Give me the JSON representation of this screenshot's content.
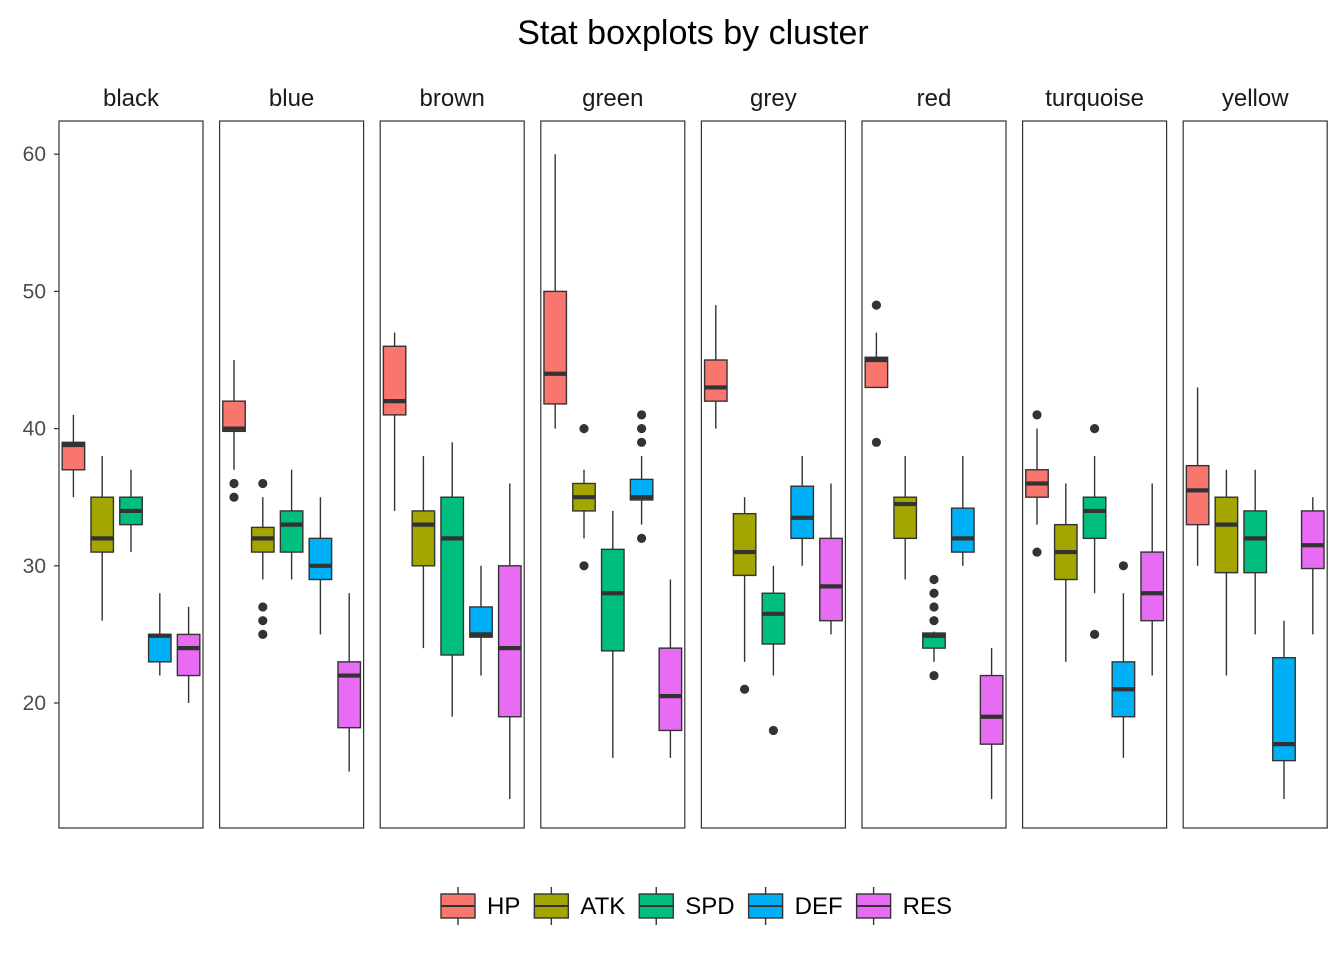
{
  "chart_data": {
    "type": "boxplot",
    "title": "Stat boxplots by cluster",
    "ylim": [
      11,
      62.5
    ],
    "yticks": [
      20,
      30,
      40,
      50,
      60
    ],
    "legend": {
      "placement": "bottom",
      "entries": [
        "HP",
        "ATK",
        "SPD",
        "DEF",
        "RES"
      ]
    },
    "colors": {
      "HP": "#F8766D",
      "ATK": "#A3A500",
      "SPD": "#00BF7D",
      "DEF": "#00B0F6",
      "RES": "#E76BF3"
    },
    "grid": false,
    "panels": [
      {
        "name": "black",
        "boxes": [
          {
            "stat": "HP",
            "min": 35,
            "q1": 37,
            "median": 38.8,
            "q3": 39,
            "max": 41,
            "outliers": []
          },
          {
            "stat": "ATK",
            "min": 26,
            "q1": 31,
            "median": 32,
            "q3": 35,
            "max": 38,
            "outliers": []
          },
          {
            "stat": "SPD",
            "min": 31,
            "q1": 33,
            "median": 34,
            "q3": 35,
            "max": 37,
            "outliers": []
          },
          {
            "stat": "DEF",
            "min": 22,
            "q1": 23,
            "median": 24.9,
            "q3": 25,
            "max": 28,
            "outliers": []
          },
          {
            "stat": "RES",
            "min": 20,
            "q1": 22,
            "median": 24,
            "q3": 25,
            "max": 27,
            "outliers": []
          }
        ]
      },
      {
        "name": "blue",
        "boxes": [
          {
            "stat": "HP",
            "min": 37,
            "q1": 39.8,
            "median": 40,
            "q3": 42,
            "max": 45,
            "outliers": [
              35,
              36
            ]
          },
          {
            "stat": "ATK",
            "min": 29,
            "q1": 31,
            "median": 32,
            "q3": 32.8,
            "max": 35,
            "outliers": [
              25,
              26,
              27,
              36
            ]
          },
          {
            "stat": "SPD",
            "min": 29,
            "q1": 31,
            "median": 33,
            "q3": 34,
            "max": 37,
            "outliers": []
          },
          {
            "stat": "DEF",
            "min": 25,
            "q1": 29,
            "median": 30,
            "q3": 32,
            "max": 35,
            "outliers": []
          },
          {
            "stat": "RES",
            "min": 15,
            "q1": 18.2,
            "median": 22,
            "q3": 23,
            "max": 28,
            "outliers": []
          }
        ]
      },
      {
        "name": "brown",
        "boxes": [
          {
            "stat": "HP",
            "min": 34,
            "q1": 41,
            "median": 42,
            "q3": 46,
            "max": 47,
            "outliers": []
          },
          {
            "stat": "ATK",
            "min": 24,
            "q1": 30,
            "median": 33,
            "q3": 34,
            "max": 38,
            "outliers": []
          },
          {
            "stat": "SPD",
            "min": 19,
            "q1": 23.5,
            "median": 32,
            "q3": 35,
            "max": 39,
            "outliers": []
          },
          {
            "stat": "DEF",
            "min": 22,
            "q1": 24.8,
            "median": 25,
            "q3": 27,
            "max": 30,
            "outliers": []
          },
          {
            "stat": "RES",
            "min": 13,
            "q1": 19,
            "median": 24,
            "q3": 30,
            "max": 36,
            "outliers": []
          }
        ]
      },
      {
        "name": "green",
        "boxes": [
          {
            "stat": "HP",
            "min": 40,
            "q1": 41.8,
            "median": 44,
            "q3": 50,
            "max": 60,
            "outliers": []
          },
          {
            "stat": "ATK",
            "min": 32,
            "q1": 34,
            "median": 35,
            "q3": 36,
            "max": 37,
            "outliers": [
              30,
              40
            ]
          },
          {
            "stat": "SPD",
            "min": 16,
            "q1": 23.8,
            "median": 28,
            "q3": 31.2,
            "max": 34,
            "outliers": []
          },
          {
            "stat": "DEF",
            "min": 33,
            "q1": 34.8,
            "median": 35,
            "q3": 36.3,
            "max": 38,
            "outliers": [
              32,
              39,
              40,
              41
            ]
          },
          {
            "stat": "RES",
            "min": 16,
            "q1": 18,
            "median": 20.5,
            "q3": 24,
            "max": 29,
            "outliers": []
          }
        ]
      },
      {
        "name": "grey",
        "boxes": [
          {
            "stat": "HP",
            "min": 40,
            "q1": 42,
            "median": 43,
            "q3": 45,
            "max": 49,
            "outliers": []
          },
          {
            "stat": "ATK",
            "min": 23,
            "q1": 29.3,
            "median": 31,
            "q3": 33.8,
            "max": 35,
            "outliers": [
              21
            ]
          },
          {
            "stat": "SPD",
            "min": 22,
            "q1": 24.3,
            "median": 26.5,
            "q3": 28,
            "max": 30,
            "outliers": [
              18
            ]
          },
          {
            "stat": "DEF",
            "min": 30,
            "q1": 32,
            "median": 33.5,
            "q3": 35.8,
            "max": 38,
            "outliers": []
          },
          {
            "stat": "RES",
            "min": 25,
            "q1": 26,
            "median": 28.5,
            "q3": 32,
            "max": 36,
            "outliers": []
          }
        ]
      },
      {
        "name": "red",
        "boxes": [
          {
            "stat": "HP",
            "min": 43,
            "q1": 43,
            "median": 45,
            "q3": 45.2,
            "max": 47,
            "outliers": [
              39,
              49
            ]
          },
          {
            "stat": "ATK",
            "min": 29,
            "q1": 32,
            "median": 34.5,
            "q3": 35,
            "max": 38,
            "outliers": []
          },
          {
            "stat": "SPD",
            "min": 23,
            "q1": 24,
            "median": 24.9,
            "q3": 25.1,
            "max": 25.2,
            "outliers": [
              22,
              26,
              27,
              28,
              29
            ]
          },
          {
            "stat": "DEF",
            "min": 30,
            "q1": 31,
            "median": 32,
            "q3": 34.2,
            "max": 38,
            "outliers": []
          },
          {
            "stat": "RES",
            "min": 13,
            "q1": 17,
            "median": 19,
            "q3": 22,
            "max": 24,
            "outliers": []
          }
        ]
      },
      {
        "name": "turquoise",
        "boxes": [
          {
            "stat": "HP",
            "min": 33,
            "q1": 35,
            "median": 36,
            "q3": 37,
            "max": 40,
            "outliers": [
              31,
              41
            ]
          },
          {
            "stat": "ATK",
            "min": 23,
            "q1": 29,
            "median": 31,
            "q3": 33,
            "max": 36,
            "outliers": []
          },
          {
            "stat": "SPD",
            "min": 28,
            "q1": 32,
            "median": 34,
            "q3": 35,
            "max": 38,
            "outliers": [
              25,
              40
            ]
          },
          {
            "stat": "DEF",
            "min": 16,
            "q1": 19,
            "median": 21,
            "q3": 23,
            "max": 28,
            "outliers": [
              30
            ]
          },
          {
            "stat": "RES",
            "min": 22,
            "q1": 26,
            "median": 28,
            "q3": 31,
            "max": 36,
            "outliers": []
          }
        ]
      },
      {
        "name": "yellow",
        "boxes": [
          {
            "stat": "HP",
            "min": 30,
            "q1": 33,
            "median": 35.5,
            "q3": 37.3,
            "max": 43,
            "outliers": []
          },
          {
            "stat": "ATK",
            "min": 22,
            "q1": 29.5,
            "median": 33,
            "q3": 35,
            "max": 37,
            "outliers": []
          },
          {
            "stat": "SPD",
            "min": 25,
            "q1": 29.5,
            "median": 32,
            "q3": 34,
            "max": 37,
            "outliers": []
          },
          {
            "stat": "DEF",
            "min": 13,
            "q1": 15.8,
            "median": 17,
            "q3": 23.3,
            "max": 26,
            "outliers": []
          },
          {
            "stat": "RES",
            "min": 25,
            "q1": 29.8,
            "median": 31.5,
            "q3": 34,
            "max": 35,
            "outliers": []
          }
        ]
      }
    ]
  }
}
